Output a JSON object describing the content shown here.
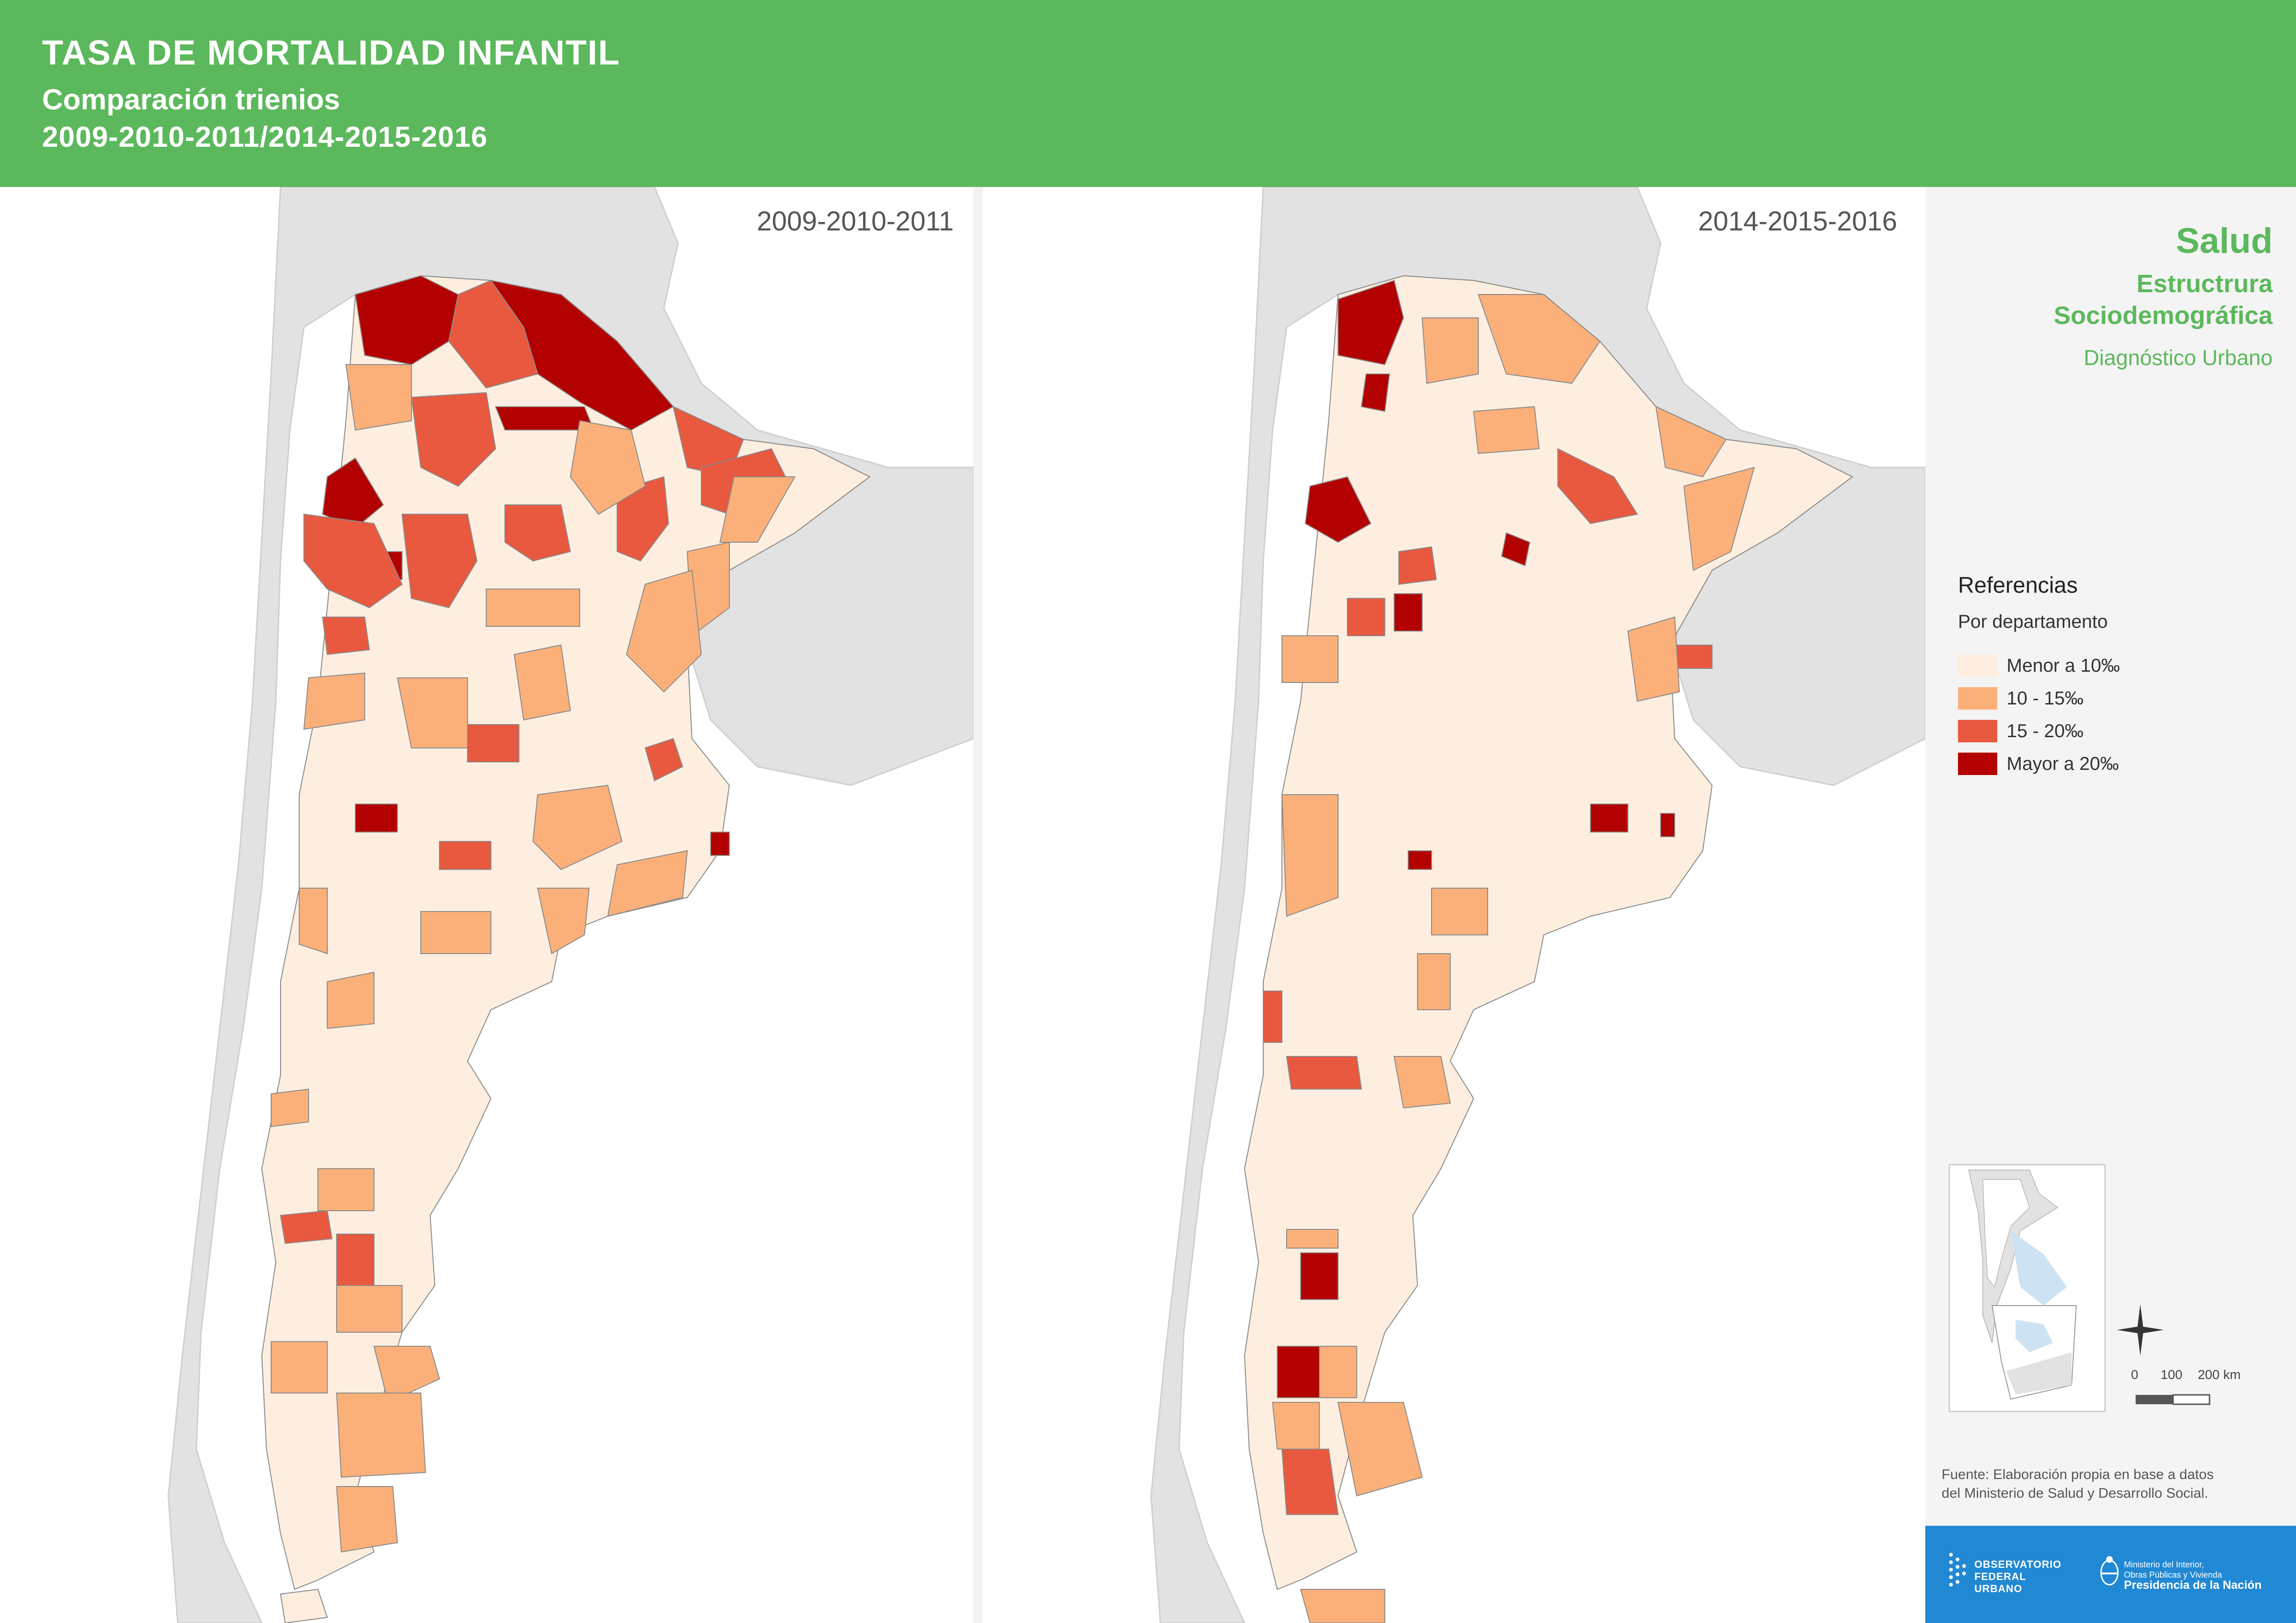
{
  "header": {
    "title": "TASA DE MORTALIDAD INFANTIL",
    "subtitle_line1": "Comparación trienios",
    "subtitle_line2": "2009-2010-2011/2014-2015-2016"
  },
  "maps": [
    {
      "period": "2009-2010-2011"
    },
    {
      "period": "2014-2015-2016"
    }
  ],
  "sidebar": {
    "theme": "Salud",
    "subtheme_line1": "Estructrura",
    "subtheme_line2": "Sociodemográfica",
    "section": "Diagnóstico Urbano"
  },
  "legend": {
    "title": "Referencias",
    "subtitle": "Por departamento",
    "items": [
      {
        "label": "Menor a 10‰",
        "color": "#fdeee0"
      },
      {
        "label": "10 - 15‰",
        "color": "#fbb07a"
      },
      {
        "label": "15 - 20‰",
        "color": "#e8593f"
      },
      {
        "label": "Mayor a 20‰",
        "color": "#b30000"
      }
    ]
  },
  "scale": {
    "labels": [
      "0",
      "100",
      "200 km"
    ]
  },
  "source": {
    "line1": "Fuente: Elaboración propia en base a datos",
    "line2": "del Ministerio de Salud y Desarrollo Social."
  },
  "footer": {
    "observatorio_line1": "OBSERVATORIO",
    "observatorio_line2": "FEDERAL",
    "observatorio_line3": "URBANO",
    "ministerio_line1": "Ministerio del Interior,",
    "ministerio_line2": "Obras Públicas y Vivienda",
    "presidencia": "Presidencia de la Nación"
  },
  "colors": {
    "header_green": "#5cb85c",
    "footer_blue": "#2188d4",
    "neighbor_gray": "#e2e2e2"
  },
  "icons": [
    "compass-star-icon",
    "observatorio-logo-icon",
    "coat-of-arms-icon"
  ]
}
